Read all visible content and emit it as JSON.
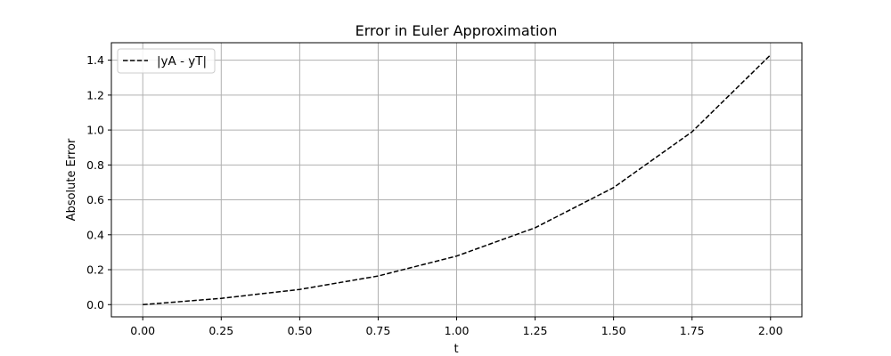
{
  "chart_data": {
    "type": "line",
    "title": "Error in Euler Approximation",
    "xlabel": "t",
    "ylabel": "Absolute Error",
    "xlim": [
      -0.1,
      2.1
    ],
    "ylim": [
      -0.07,
      1.5
    ],
    "xticks": [
      0.0,
      0.25,
      0.5,
      0.75,
      1.0,
      1.25,
      1.5,
      1.75,
      2.0
    ],
    "xtick_labels": [
      "0.00",
      "0.25",
      "0.50",
      "0.75",
      "1.00",
      "1.25",
      "1.50",
      "1.75",
      "2.00"
    ],
    "yticks": [
      0.0,
      0.2,
      0.4,
      0.6,
      0.8,
      1.0,
      1.2,
      1.4
    ],
    "ytick_labels": [
      "0.0",
      "0.2",
      "0.4",
      "0.6",
      "0.8",
      "1.0",
      "1.2",
      "1.4"
    ],
    "grid": true,
    "legend_position": "upper-left",
    "series": [
      {
        "name": "|yA - yT|",
        "color": "#000000",
        "line_style": "dashed",
        "x": [
          0.0,
          0.25,
          0.5,
          0.75,
          1.0,
          1.25,
          1.5,
          1.75,
          2.0
        ],
        "y": [
          0.0,
          0.036,
          0.087,
          0.164,
          0.278,
          0.44,
          0.67,
          0.99,
          1.43
        ]
      }
    ]
  }
}
